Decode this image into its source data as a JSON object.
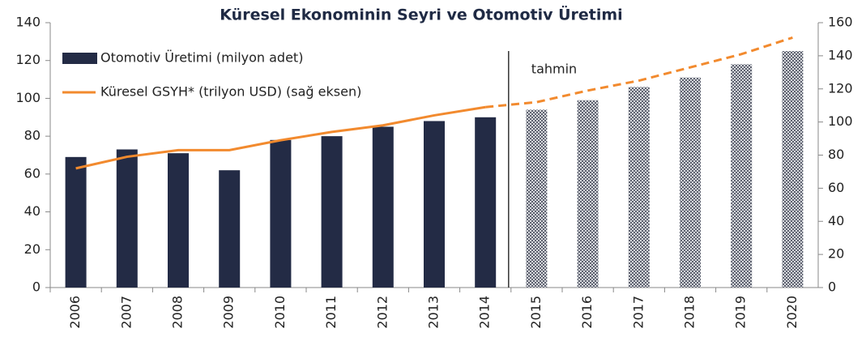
{
  "chart_data": {
    "type": "bar_line",
    "title": "Küresel Ekonominin Seyri ve Otomotiv Üretimi",
    "categories": [
      "2006",
      "2007",
      "2008",
      "2009",
      "2010",
      "2011",
      "2012",
      "2013",
      "2014",
      "2015",
      "2016",
      "2017",
      "2018",
      "2019",
      "2020"
    ],
    "series": [
      {
        "name": "Otomotiv Üretimi (milyon adet)",
        "color": "#232b45",
        "type": "bar",
        "values": [
          69,
          73,
          71,
          62,
          78,
          80,
          85,
          88,
          90,
          94,
          99,
          106,
          111,
          118,
          125
        ]
      },
      {
        "name": "Küresel GSYH* (trilyon USD) (sağ eksen)",
        "color": "#f28a2e",
        "type": "line",
        "axis": "y2",
        "values": [
          72,
          79,
          83,
          83,
          89,
          94,
          98,
          104,
          109,
          112,
          119,
          125,
          133,
          141,
          151
        ]
      }
    ],
    "annotation": "tahmin",
    "forecast_from": "2015",
    "ylim": [
      0,
      140
    ],
    "yticks": [
      0,
      20,
      40,
      60,
      80,
      100,
      120,
      140
    ],
    "y2lim": [
      0,
      160
    ],
    "y2ticks": [
      0,
      20,
      40,
      60,
      80,
      100,
      120,
      140,
      160
    ],
    "legend": "upper left"
  }
}
